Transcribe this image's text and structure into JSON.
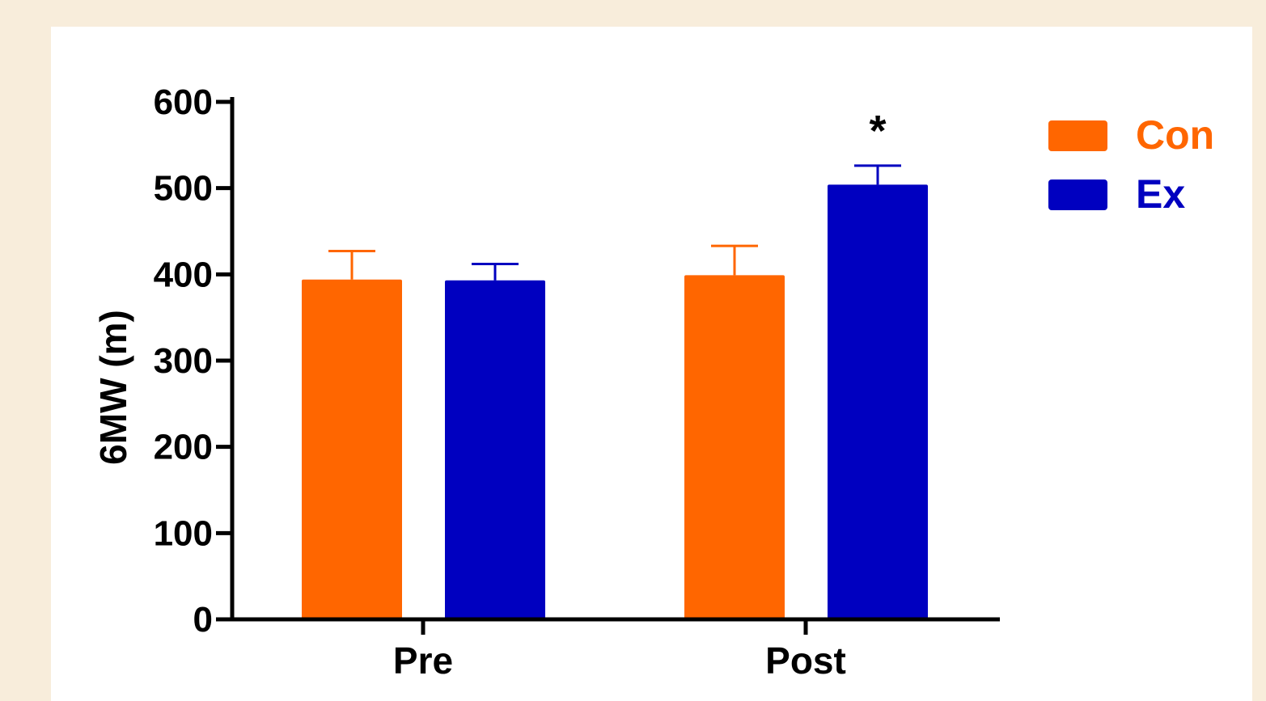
{
  "chart_data": {
    "type": "bar",
    "categories": [
      "Pre",
      "Post"
    ],
    "ylabel": "6MW (m)",
    "ylim": [
      0,
      600
    ],
    "yticks": [
      0,
      100,
      200,
      300,
      400,
      500,
      600
    ],
    "grid": false,
    "legend_position": "top-right",
    "series": [
      {
        "name": "Con",
        "color": "#ff6600",
        "values": [
          394,
          399
        ],
        "errors": [
          33,
          34
        ]
      },
      {
        "name": "Ex",
        "color": "#0000c0",
        "values": [
          393,
          504
        ],
        "errors": [
          19,
          22
        ]
      }
    ],
    "annotations": [
      {
        "text": "*",
        "category": "Post",
        "series": "Ex"
      }
    ]
  }
}
